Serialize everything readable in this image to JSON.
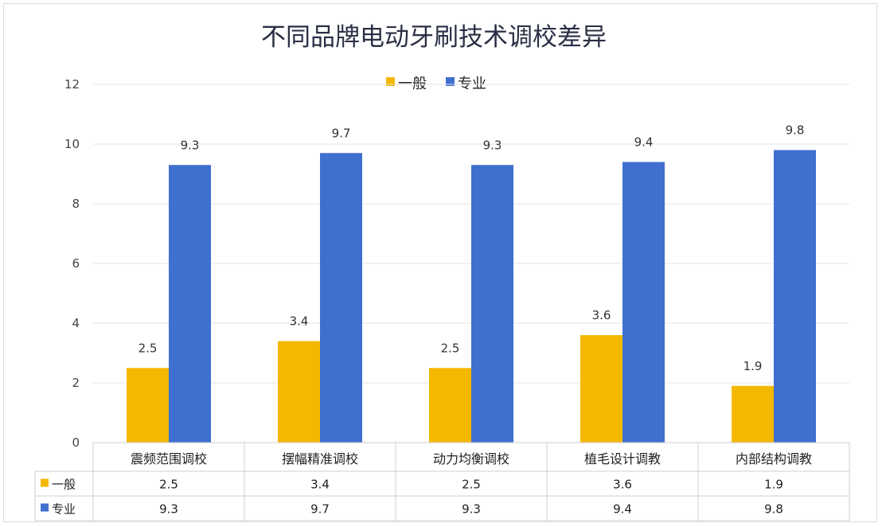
{
  "chart_data": {
    "type": "bar",
    "title": "不同品牌电动牙刷技术调校差异",
    "categories": [
      "震频范围调校",
      "摆幅精准调校",
      "动力均衡调校",
      "植毛设计调教",
      "内部结构调教"
    ],
    "series": [
      {
        "name": "一般",
        "values": [
          2.5,
          3.4,
          2.5,
          3.6,
          1.9
        ],
        "color": "#f5b800"
      },
      {
        "name": "专业",
        "values": [
          9.3,
          9.7,
          9.3,
          9.4,
          9.8
        ],
        "color": "#3f6fcf"
      }
    ],
    "ylim": [
      0,
      12
    ],
    "yticks": [
      0,
      2,
      4,
      6,
      8,
      10,
      12
    ],
    "grid": true,
    "legend": "top-center",
    "data_table": true
  }
}
